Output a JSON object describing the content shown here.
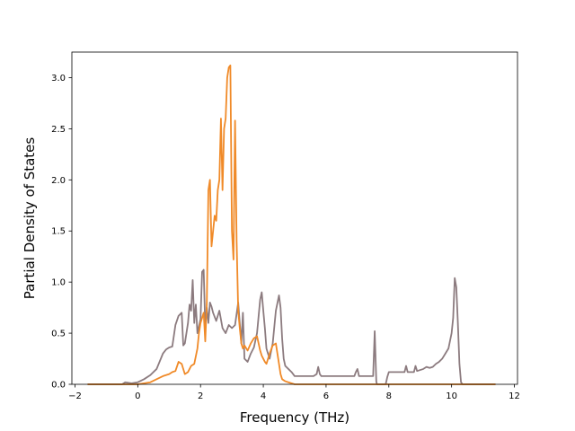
{
  "chart_data": {
    "type": "line",
    "title": "",
    "xlabel": "Frequency (THz)",
    "ylabel": "Partial Density of States",
    "xlim": [
      -2.1,
      12.1
    ],
    "ylim": [
      0.0,
      3.25
    ],
    "xticks": [
      -2,
      0,
      2,
      4,
      6,
      8,
      10,
      12
    ],
    "xtick_labels": [
      "−2",
      "0",
      "2",
      "4",
      "6",
      "8",
      "10",
      "12"
    ],
    "yticks": [
      0.0,
      0.5,
      1.0,
      1.5,
      2.0,
      2.5,
      3.0
    ],
    "ytick_labels": [
      "0.0",
      "0.5",
      "1.0",
      "1.5",
      "2.0",
      "2.5",
      "3.0"
    ],
    "grid": false,
    "legend": "none",
    "series": [
      {
        "color": "#8c7b7f",
        "x": [
          -1.6,
          -0.5,
          -0.4,
          -0.2,
          0.0,
          0.2,
          0.4,
          0.6,
          0.8,
          0.9,
          1.0,
          1.1,
          1.2,
          1.3,
          1.4,
          1.45,
          1.5,
          1.6,
          1.65,
          1.7,
          1.75,
          1.8,
          1.85,
          1.9,
          2.0,
          2.05,
          2.1,
          2.15,
          2.2,
          2.25,
          2.3,
          2.35,
          2.4,
          2.5,
          2.6,
          2.7,
          2.8,
          2.9,
          3.0,
          3.1,
          3.2,
          3.25,
          3.3,
          3.35,
          3.4,
          3.5,
          3.6,
          3.7,
          3.8,
          3.9,
          3.95,
          4.0,
          4.05,
          4.1,
          4.15,
          4.2,
          4.3,
          4.4,
          4.5,
          4.55,
          4.6,
          4.65,
          4.7,
          4.8,
          4.9,
          5.0,
          5.2,
          5.4,
          5.6,
          5.7,
          5.75,
          5.8,
          5.85,
          5.9,
          6.0,
          6.5,
          6.9,
          6.95,
          7.0,
          7.05,
          7.1,
          7.3,
          7.5,
          7.55,
          7.6,
          7.62,
          7.65,
          7.9,
          7.95,
          8.0,
          8.2,
          8.4,
          8.5,
          8.55,
          8.6,
          8.65,
          8.8,
          8.85,
          8.9,
          9.1,
          9.2,
          9.3,
          9.4,
          9.5,
          9.6,
          9.7,
          9.8,
          9.9,
          10.0,
          10.05,
          10.1,
          10.15,
          10.2,
          10.25,
          10.3,
          10.35,
          10.4,
          10.5,
          11.4
        ],
        "y": [
          0.0,
          0.0,
          0.02,
          0.01,
          0.02,
          0.05,
          0.09,
          0.15,
          0.3,
          0.34,
          0.36,
          0.37,
          0.58,
          0.67,
          0.7,
          0.38,
          0.4,
          0.6,
          0.78,
          0.72,
          1.02,
          0.6,
          0.78,
          0.5,
          0.64,
          1.1,
          1.12,
          0.55,
          0.75,
          0.6,
          0.8,
          0.76,
          0.7,
          0.62,
          0.72,
          0.55,
          0.5,
          0.58,
          0.55,
          0.58,
          0.8,
          0.6,
          0.4,
          0.7,
          0.25,
          0.22,
          0.3,
          0.36,
          0.5,
          0.83,
          0.9,
          0.72,
          0.55,
          0.35,
          0.3,
          0.25,
          0.4,
          0.72,
          0.87,
          0.75,
          0.45,
          0.25,
          0.18,
          0.15,
          0.12,
          0.08,
          0.08,
          0.08,
          0.08,
          0.1,
          0.17,
          0.1,
          0.08,
          0.08,
          0.08,
          0.08,
          0.08,
          0.12,
          0.15,
          0.08,
          0.08,
          0.08,
          0.08,
          0.52,
          0.03,
          0.0,
          0.0,
          0.0,
          0.07,
          0.12,
          0.12,
          0.12,
          0.12,
          0.18,
          0.12,
          0.12,
          0.12,
          0.18,
          0.13,
          0.15,
          0.17,
          0.16,
          0.17,
          0.2,
          0.22,
          0.25,
          0.3,
          0.35,
          0.5,
          0.65,
          1.04,
          0.95,
          0.6,
          0.2,
          0.02,
          0.0,
          0.0,
          0.0,
          0.0
        ]
      },
      {
        "color": "#f08a28",
        "x": [
          -1.6,
          0.0,
          0.2,
          0.4,
          0.6,
          0.8,
          1.0,
          1.1,
          1.2,
          1.3,
          1.4,
          1.5,
          1.6,
          1.7,
          1.8,
          1.9,
          1.95,
          2.0,
          2.05,
          2.1,
          2.15,
          2.2,
          2.25,
          2.3,
          2.35,
          2.4,
          2.45,
          2.5,
          2.55,
          2.6,
          2.65,
          2.7,
          2.75,
          2.8,
          2.85,
          2.9,
          2.95,
          3.0,
          3.05,
          3.1,
          3.15,
          3.2,
          3.25,
          3.3,
          3.35,
          3.4,
          3.5,
          3.6,
          3.7,
          3.8,
          3.9,
          3.95,
          4.0,
          4.05,
          4.1,
          4.2,
          4.3,
          4.4,
          4.5,
          4.55,
          4.6,
          4.7,
          4.8,
          4.9,
          5.0,
          5.2,
          11.4
        ],
        "y": [
          0.0,
          0.0,
          0.01,
          0.02,
          0.05,
          0.08,
          0.1,
          0.12,
          0.13,
          0.22,
          0.2,
          0.1,
          0.12,
          0.18,
          0.2,
          0.35,
          0.5,
          0.6,
          0.65,
          0.7,
          0.42,
          0.8,
          1.9,
          2.0,
          1.35,
          1.5,
          1.65,
          1.6,
          1.9,
          2.0,
          2.6,
          1.9,
          2.5,
          2.6,
          3.0,
          3.1,
          3.12,
          1.5,
          1.22,
          2.58,
          1.4,
          0.72,
          0.55,
          0.4,
          0.35,
          0.38,
          0.33,
          0.4,
          0.45,
          0.47,
          0.33,
          0.28,
          0.25,
          0.22,
          0.2,
          0.3,
          0.38,
          0.4,
          0.2,
          0.1,
          0.05,
          0.03,
          0.02,
          0.01,
          0.0,
          0.0,
          0.0
        ]
      }
    ]
  }
}
